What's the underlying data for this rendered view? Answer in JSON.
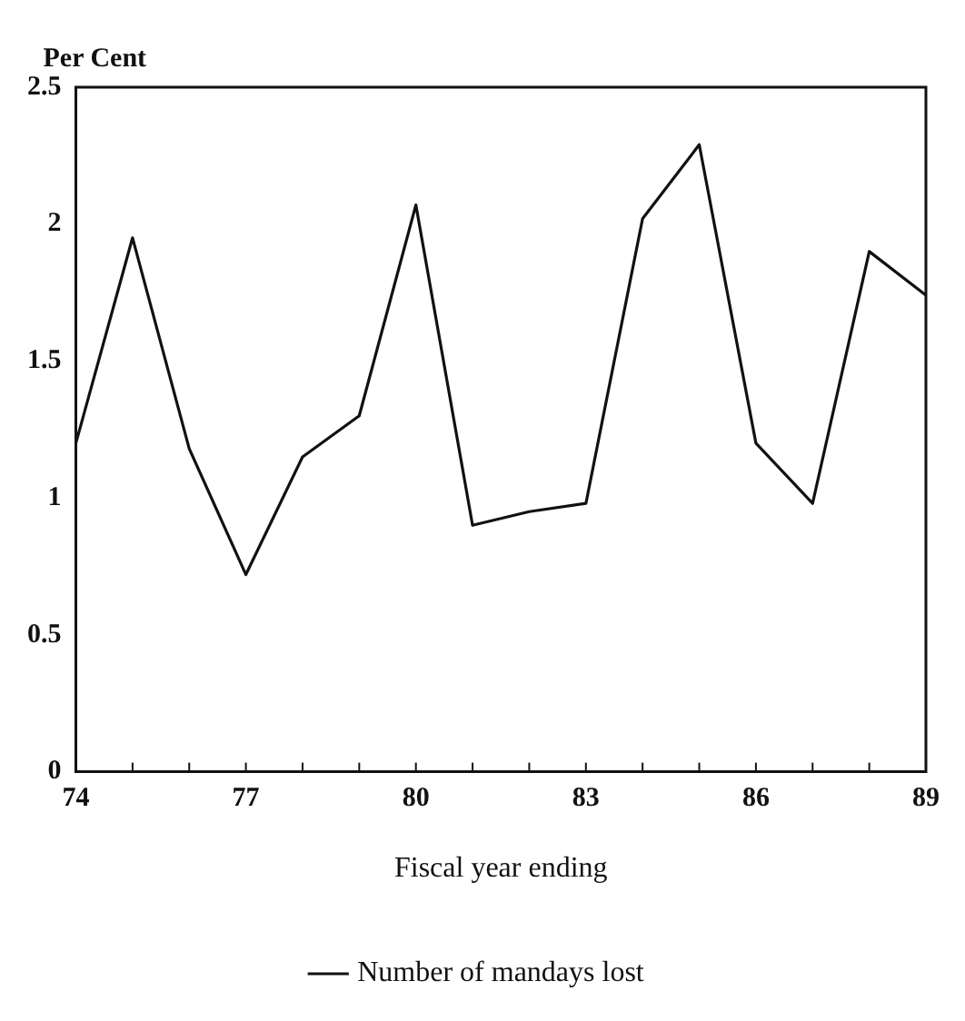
{
  "chart_data": {
    "type": "line",
    "ylabel": "Per Cent",
    "xlabel": "Fiscal year ending",
    "x": [
      74,
      75,
      76,
      77,
      78,
      79,
      80,
      81,
      82,
      83,
      84,
      85,
      86,
      87,
      88,
      89
    ],
    "series": [
      {
        "name": "Number of mandays lost",
        "color": "#111111",
        "values": [
          1.2,
          1.95,
          1.18,
          0.72,
          1.15,
          1.3,
          2.07,
          0.9,
          0.95,
          0.98,
          2.02,
          2.29,
          1.2,
          0.98,
          1.9,
          1.74
        ]
      }
    ],
    "xlim": [
      74,
      89
    ],
    "ylim": [
      0,
      2.5
    ],
    "xticks": [
      74,
      {
        "value": 75,
        "label": null
      },
      {
        "value": 76,
        "label": null
      },
      77,
      {
        "value": 78,
        "label": null
      },
      {
        "value": 79,
        "label": null
      },
      80,
      {
        "value": 81,
        "label": null
      },
      {
        "value": 82,
        "label": null
      },
      83,
      {
        "value": 84,
        "label": null
      },
      {
        "value": 85,
        "label": null
      },
      86,
      {
        "value": 87,
        "label": null
      },
      {
        "value": 88,
        "label": null
      },
      89
    ],
    "yticks": [
      0,
      0.5,
      1,
      1.5,
      2,
      2.5
    ],
    "grid": false,
    "legend": "bottom",
    "marker": "none",
    "line_style": "solid"
  }
}
